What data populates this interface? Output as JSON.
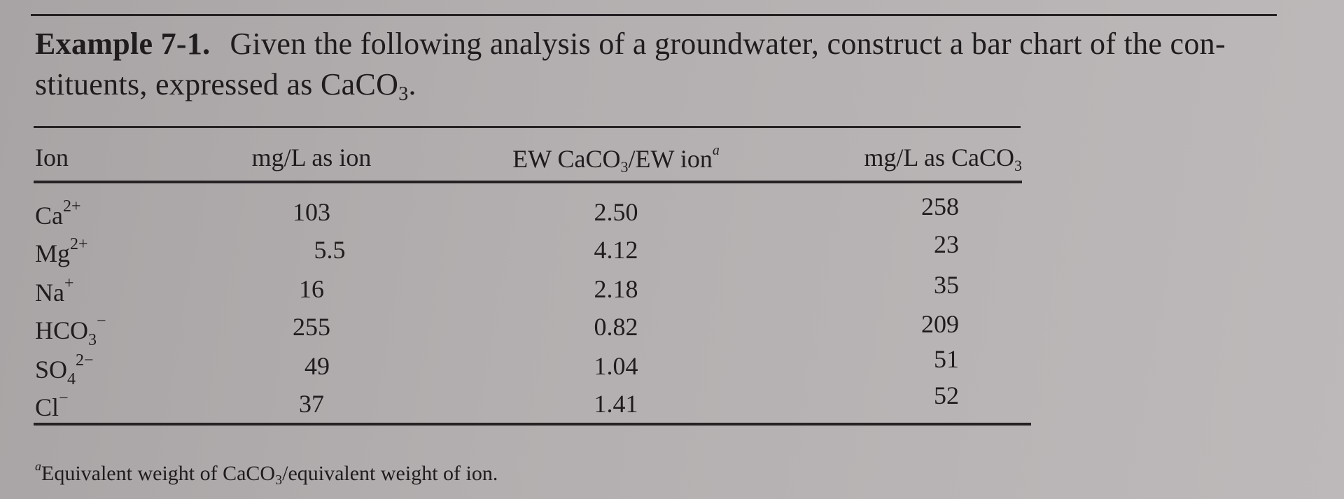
{
  "example": {
    "label": "Example 7-1.",
    "text_line1": "Given the following analysis of a groundwater, construct a bar chart of the con-",
    "text_line2_pre": "stituents, expressed as CaCO",
    "text_line2_sub": "3",
    "text_line2_post": "."
  },
  "table": {
    "headers": {
      "ion": "Ion",
      "mg_as_ion": "mg/L as ion",
      "ew_ratio_pre": "EW CaCO",
      "ew_ratio_sub": "3",
      "ew_ratio_post": "/EW ion",
      "ew_ratio_note": "a",
      "mg_as_caco3_pre": "mg/L as CaCO",
      "mg_as_caco3_sub": "3"
    },
    "rows": [
      {
        "ion_base": "Ca",
        "ion_sub": "",
        "ion_charge": "2+",
        "mg_as_ion": "103",
        "ew_ratio": "2.50",
        "mg_as_caco3": "258"
      },
      {
        "ion_base": "Mg",
        "ion_sub": "",
        "ion_charge": "2+",
        "mg_as_ion": "5.5",
        "ew_ratio": "4.12",
        "mg_as_caco3": "23"
      },
      {
        "ion_base": "Na",
        "ion_sub": "",
        "ion_charge": "+",
        "mg_as_ion": "16",
        "ew_ratio": "2.18",
        "mg_as_caco3": "35"
      },
      {
        "ion_base": "HCO",
        "ion_sub": "3",
        "ion_charge": "−",
        "mg_as_ion": "255",
        "ew_ratio": "0.82",
        "mg_as_caco3": "209"
      },
      {
        "ion_base": "SO",
        "ion_sub": "4",
        "ion_charge": "2−",
        "mg_as_ion": "49",
        "ew_ratio": "1.04",
        "mg_as_caco3": "51"
      },
      {
        "ion_base": "Cl",
        "ion_sub": "",
        "ion_charge": "−",
        "mg_as_ion": "37",
        "ew_ratio": "1.41",
        "mg_as_caco3": "52"
      }
    ]
  },
  "footnote": {
    "marker": "a",
    "text_pre": "Equivalent weight of CaCO",
    "text_sub": "3",
    "text_post": "/equivalent weight of ion."
  }
}
